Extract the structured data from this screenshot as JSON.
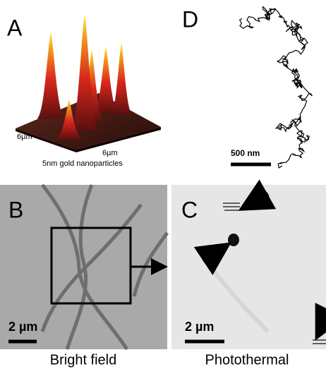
{
  "panels": {
    "a": {
      "label": "A",
      "axis_left": "6µm",
      "axis_right": "6µm",
      "caption": "5nm gold nanoparticles"
    },
    "d": {
      "label": "D",
      "scale_bar": "500 nm"
    },
    "b": {
      "label": "B",
      "scale_bar": "2 µm",
      "caption": "Bright field"
    },
    "c": {
      "label": "C",
      "scale_bar": "2 µm",
      "caption": "Photothermal"
    }
  }
}
